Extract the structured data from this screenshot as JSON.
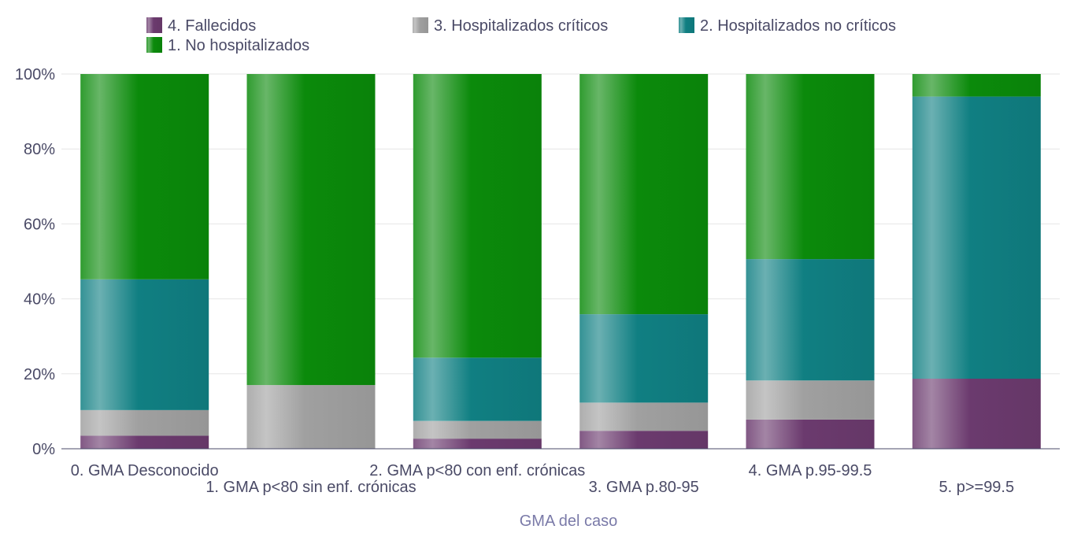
{
  "chart_data": {
    "type": "bar",
    "stacked": true,
    "normalized": true,
    "xlabel": "GMA del caso",
    "ylabel": "",
    "ylim": [
      0,
      100
    ],
    "yticks": [
      "0%",
      "20%",
      "40%",
      "60%",
      "80%",
      "100%"
    ],
    "grid": true,
    "legend_position": "top",
    "categories": [
      "0. GMA Desconocido",
      "1. GMA p<80 sin enf. crónicas",
      "2. GMA p<80 con enf. crónicas",
      "3. GMA p.80-95",
      "4. GMA p.95-99.5",
      "5. p>=99.5"
    ],
    "series": [
      {
        "name": "4. Fallecidos",
        "color": "#6b3a6e",
        "values": [
          3.5,
          0,
          2.7,
          4.8,
          7.8,
          18.7
        ]
      },
      {
        "name": "3. Hospitalizados críticos",
        "color": "#a0a0a0",
        "values": [
          6.8,
          17,
          4.7,
          7.5,
          10.4,
          0
        ]
      },
      {
        "name": "2. Hospitalizados no críticos",
        "color": "#107f82",
        "values": [
          34.9,
          0,
          16.9,
          23.6,
          32.4,
          75.3
        ]
      },
      {
        "name": "1. No hospitalizados",
        "color": "#0b8a0b",
        "values": [
          54.8,
          83,
          75.7,
          64.1,
          49.4,
          6.0
        ]
      }
    ],
    "legend_rows": [
      [
        "4. Fallecidos",
        "3. Hospitalizados críticos",
        "2. Hospitalizados no críticos"
      ],
      [
        "1. No hospitalizados"
      ]
    ]
  }
}
